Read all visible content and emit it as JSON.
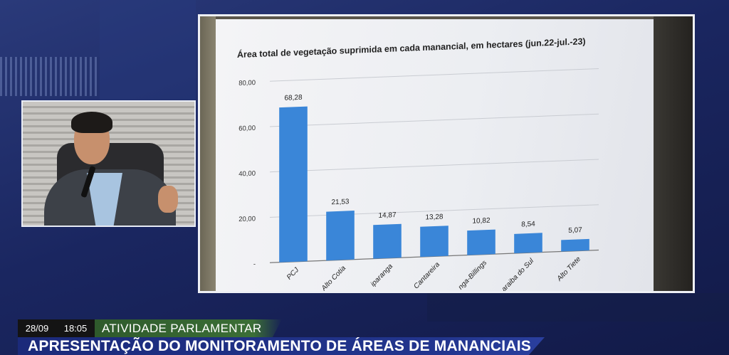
{
  "broadcast": {
    "date": "28/09",
    "time": "18:05",
    "category": "ATIVIDADE PARLAMENTAR",
    "headline": "APRESENTAÇÃO DO MONITORAMENTO DE ÁREAS DE MANANCIAIS"
  },
  "chart_data": {
    "type": "bar",
    "title": "Área total de vegetação suprimida em cada manancial, em hectares (jun.22-jul.-23)",
    "categories": [
      "PCJ",
      "Alto Cotia",
      "Guarapiranga",
      "Cantareira",
      "Rio Grande-Billings",
      "Paraíba do Sul",
      "Alto Tietê"
    ],
    "visible_category_labels": [
      "PCJ",
      "Alto Cotia",
      "iparanga",
      "Cantareira",
      "nga-Billings",
      "araiba do Sul",
      "Alto Tiete"
    ],
    "values": [
      68.28,
      21.53,
      14.87,
      13.28,
      10.82,
      8.54,
      5.07
    ],
    "value_labels": [
      "68,28",
      "21,53",
      "14,87",
      "13,28",
      "10,82",
      "8,54",
      "5,07"
    ],
    "y_ticks": [
      "-",
      "20,00",
      "40,00",
      "60,00",
      "80,00"
    ],
    "ylim": [
      0,
      80
    ],
    "grid": true,
    "bar_color": "#3a86d8"
  }
}
